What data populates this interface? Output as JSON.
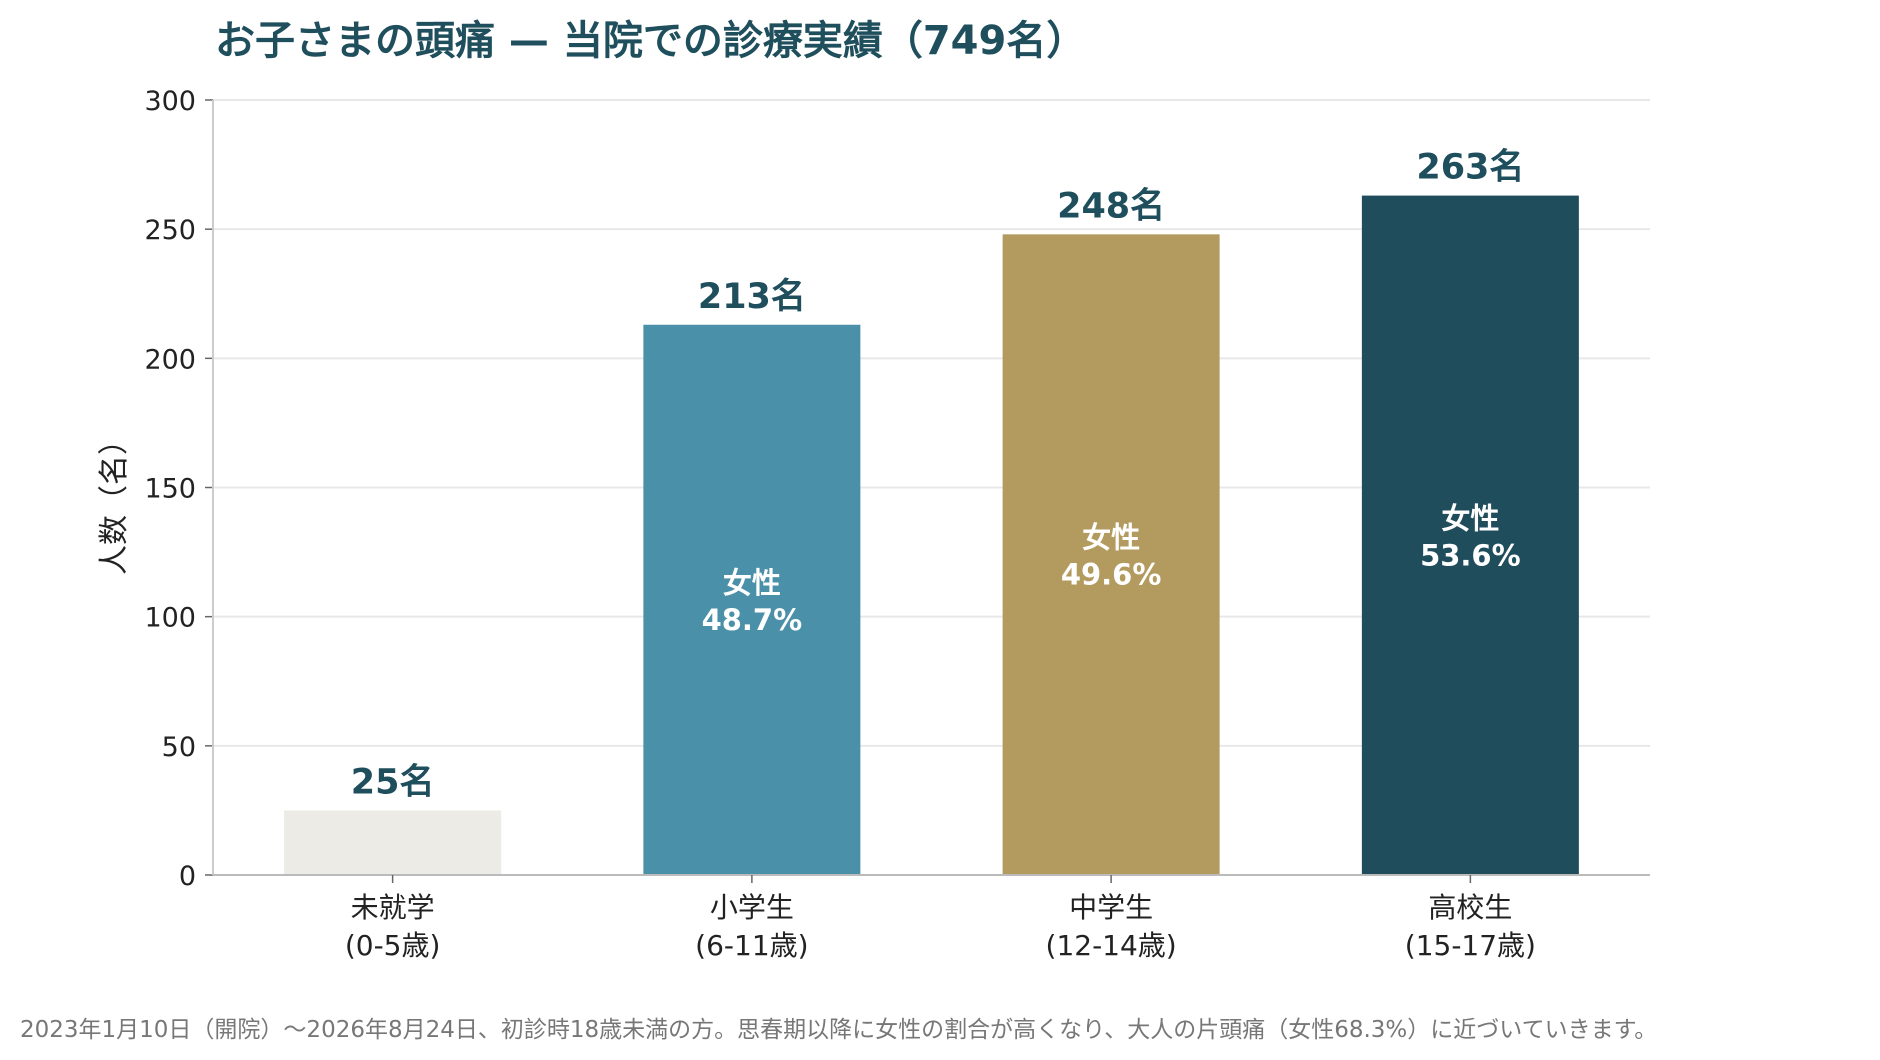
{
  "chart_data": {
    "type": "bar",
    "title": "お子さまの頭痛 — 当院での診療実績（749名）",
    "ylabel": "人数（名）",
    "xlabel": "",
    "ylim": [
      0,
      300
    ],
    "yticks": [
      0,
      50,
      100,
      150,
      200,
      250,
      300
    ],
    "grid": true,
    "categories": [
      [
        "未就学",
        "(0-5歳)"
      ],
      [
        "小学生",
        "(6-11歳)"
      ],
      [
        "中学生",
        "(12-14歳)"
      ],
      [
        "高校生",
        "(15-17歳)"
      ]
    ],
    "values": [
      25,
      213,
      248,
      263
    ],
    "value_labels": [
      "25名",
      "213名",
      "248名",
      "263名"
    ],
    "bar_colors": [
      "#ecebe6",
      "#4a90a8",
      "#b39b5f",
      "#204d5c"
    ],
    "inner_labels": [
      null,
      [
        "女性",
        "48.7%"
      ],
      [
        "女性",
        "49.6%"
      ],
      [
        "女性",
        "53.6%"
      ]
    ],
    "female_pct": [
      null,
      48.7,
      49.6,
      53.6
    ],
    "footnote": "2023年1月10日（開院）〜2026年8月24日、初診時18歳未満の方。思春期以降に女性の割合が高くなり、大人の片頭痛（女性68.3%）に近づいていきます。"
  }
}
